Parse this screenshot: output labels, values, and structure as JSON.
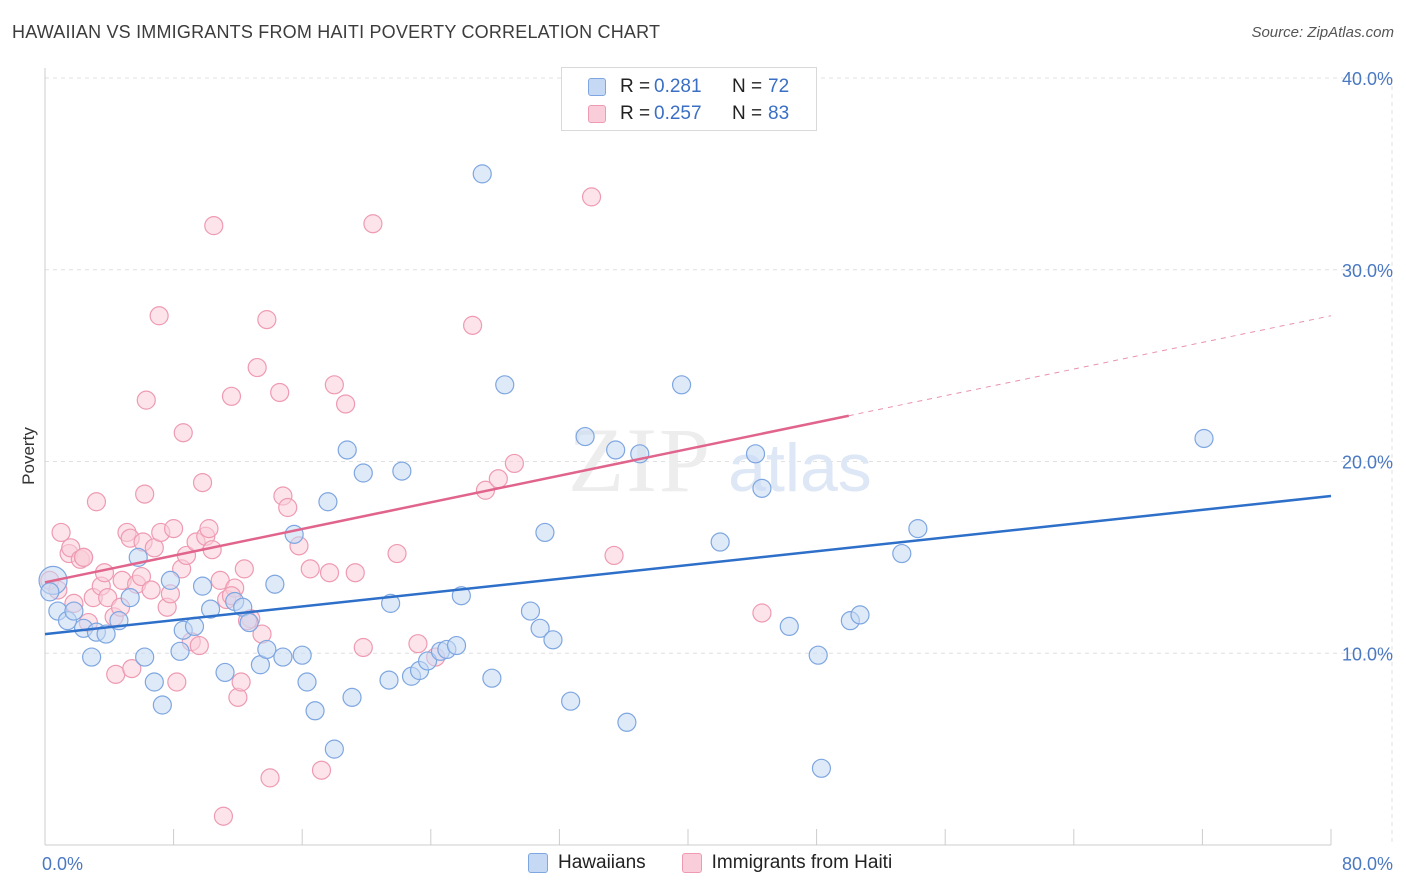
{
  "title": "HAWAIIAN VS IMMIGRANTS FROM HAITI POVERTY CORRELATION CHART",
  "source": "Source: ZipAtlas.com",
  "watermark": {
    "zip": "ZIP",
    "atlas": "atlas"
  },
  "legend": {
    "series1": {
      "r_label": "R =",
      "r_value": "0.281",
      "n_label": "N =",
      "n_value": "72"
    },
    "series2": {
      "r_label": "R =",
      "r_value": "0.257",
      "n_label": "N =",
      "n_value": "83"
    }
  },
  "colors": {
    "blue_fill": "#c5d9f4",
    "blue_stroke": "#7ea6e0",
    "blue_line": "#2d6fc9",
    "pink_fill": "#f9cdd9",
    "pink_stroke": "#ee9ab2",
    "pink_line": "#e0648c",
    "grid": "#e0e0e0",
    "axis_text": "#4a78c2"
  },
  "chart_data": {
    "type": "scatter",
    "title": "HAWAIIAN VS IMMIGRANTS FROM HAITI POVERTY CORRELATION CHART",
    "xlabel": "",
    "ylabel": "Poverty",
    "xlim": [
      0,
      80
    ],
    "ylim": [
      0,
      40
    ],
    "x_tick_labels": [
      "0.0%",
      "80.0%"
    ],
    "y_ticks": [
      10,
      20,
      30,
      40
    ],
    "y_tick_labels": [
      "10.0%",
      "20.0%",
      "30.0%",
      "40.0%"
    ],
    "legend_position": "top-center",
    "series": [
      {
        "name": "Hawaiians",
        "color": "#7ea6e0",
        "trend": {
          "x": [
            0,
            80
          ],
          "y": [
            11.0,
            18.2
          ],
          "dashed_from": null
        },
        "points": [
          [
            0.5,
            13.8
          ],
          [
            0.8,
            12.2
          ],
          [
            1.4,
            11.7
          ],
          [
            1.8,
            12.2
          ],
          [
            2.4,
            11.3
          ],
          [
            2.9,
            9.8
          ],
          [
            3.2,
            11.1
          ],
          [
            3.8,
            11.0
          ],
          [
            4.6,
            11.7
          ],
          [
            5.3,
            12.9
          ],
          [
            5.8,
            15.0
          ],
          [
            6.2,
            9.8
          ],
          [
            6.8,
            8.5
          ],
          [
            7.3,
            7.3
          ],
          [
            7.8,
            13.8
          ],
          [
            8.4,
            10.1
          ],
          [
            8.6,
            11.2
          ],
          [
            9.3,
            11.4
          ],
          [
            9.8,
            13.5
          ],
          [
            10.3,
            12.3
          ],
          [
            11.2,
            9.0
          ],
          [
            11.8,
            12.7
          ],
          [
            12.3,
            12.4
          ],
          [
            12.7,
            11.6
          ],
          [
            13.4,
            9.4
          ],
          [
            13.8,
            10.2
          ],
          [
            14.3,
            13.6
          ],
          [
            14.8,
            9.8
          ],
          [
            15.5,
            16.2
          ],
          [
            16.0,
            9.9
          ],
          [
            16.3,
            8.5
          ],
          [
            16.8,
            7.0
          ],
          [
            17.6,
            17.9
          ],
          [
            18.0,
            5.0
          ],
          [
            18.8,
            20.6
          ],
          [
            19.1,
            7.7
          ],
          [
            19.8,
            19.4
          ],
          [
            21.4,
            8.6
          ],
          [
            21.5,
            12.6
          ],
          [
            22.2,
            19.5
          ],
          [
            22.8,
            8.8
          ],
          [
            23.3,
            9.1
          ],
          [
            23.8,
            9.6
          ],
          [
            24.6,
            10.1
          ],
          [
            25.0,
            10.2
          ],
          [
            25.6,
            10.4
          ],
          [
            25.9,
            13.0
          ],
          [
            27.2,
            35.0
          ],
          [
            27.8,
            8.7
          ],
          [
            28.6,
            24.0
          ],
          [
            30.2,
            12.2
          ],
          [
            30.8,
            11.3
          ],
          [
            31.1,
            16.3
          ],
          [
            31.6,
            10.7
          ],
          [
            32.7,
            7.5
          ],
          [
            33.6,
            21.3
          ],
          [
            35.5,
            20.6
          ],
          [
            36.2,
            6.4
          ],
          [
            37.0,
            20.4
          ],
          [
            39.6,
            24.0
          ],
          [
            42.0,
            15.8
          ],
          [
            44.2,
            20.4
          ],
          [
            44.6,
            18.6
          ],
          [
            46.3,
            11.4
          ],
          [
            48.1,
            9.9
          ],
          [
            48.3,
            4.0
          ],
          [
            50.1,
            11.7
          ],
          [
            50.7,
            12.0
          ],
          [
            53.3,
            15.2
          ],
          [
            54.3,
            16.5
          ],
          [
            72.1,
            21.2
          ],
          [
            0.3,
            13.2
          ]
        ]
      },
      {
        "name": "Immigrants from Haiti",
        "color": "#ee9ab2",
        "trend": {
          "x": [
            0,
            80
          ],
          "y": [
            13.7,
            27.6
          ],
          "dashed_from": 50
        },
        "points": [
          [
            0.3,
            13.8
          ],
          [
            0.8,
            13.3
          ],
          [
            1.0,
            16.3
          ],
          [
            1.5,
            15.2
          ],
          [
            1.6,
            15.5
          ],
          [
            1.8,
            12.6
          ],
          [
            2.2,
            14.9
          ],
          [
            2.4,
            15.0
          ],
          [
            2.7,
            11.6
          ],
          [
            3.0,
            12.9
          ],
          [
            3.2,
            17.9
          ],
          [
            3.5,
            13.5
          ],
          [
            3.7,
            14.2
          ],
          [
            3.9,
            12.9
          ],
          [
            4.3,
            11.9
          ],
          [
            4.4,
            8.9
          ],
          [
            4.7,
            12.4
          ],
          [
            4.8,
            13.8
          ],
          [
            5.1,
            16.3
          ],
          [
            5.3,
            16.0
          ],
          [
            5.4,
            9.2
          ],
          [
            5.7,
            13.6
          ],
          [
            6.0,
            14.0
          ],
          [
            6.1,
            15.8
          ],
          [
            6.2,
            18.3
          ],
          [
            6.3,
            23.2
          ],
          [
            6.6,
            13.3
          ],
          [
            6.8,
            15.5
          ],
          [
            7.1,
            27.6
          ],
          [
            7.2,
            16.3
          ],
          [
            7.6,
            12.4
          ],
          [
            7.8,
            13.1
          ],
          [
            8.0,
            16.5
          ],
          [
            8.2,
            8.5
          ],
          [
            8.5,
            14.4
          ],
          [
            8.6,
            21.5
          ],
          [
            8.8,
            15.1
          ],
          [
            9.1,
            10.6
          ],
          [
            9.4,
            15.8
          ],
          [
            9.6,
            10.4
          ],
          [
            9.8,
            18.9
          ],
          [
            10.0,
            16.1
          ],
          [
            10.2,
            16.5
          ],
          [
            10.4,
            15.4
          ],
          [
            10.5,
            32.3
          ],
          [
            10.9,
            13.8
          ],
          [
            11.1,
            1.5
          ],
          [
            11.3,
            12.8
          ],
          [
            11.6,
            23.4
          ],
          [
            11.8,
            13.4
          ],
          [
            12.0,
            7.7
          ],
          [
            12.2,
            8.5
          ],
          [
            12.4,
            14.4
          ],
          [
            12.8,
            11.8
          ],
          [
            13.2,
            24.9
          ],
          [
            13.5,
            11.0
          ],
          [
            13.8,
            27.4
          ],
          [
            14.0,
            3.5
          ],
          [
            14.6,
            23.6
          ],
          [
            14.8,
            18.2
          ],
          [
            15.1,
            17.6
          ],
          [
            15.8,
            15.6
          ],
          [
            16.5,
            14.4
          ],
          [
            17.2,
            3.9
          ],
          [
            17.7,
            14.2
          ],
          [
            18.0,
            24.0
          ],
          [
            18.7,
            23.0
          ],
          [
            19.3,
            14.2
          ],
          [
            19.8,
            10.3
          ],
          [
            20.4,
            32.4
          ],
          [
            21.9,
            15.2
          ],
          [
            23.2,
            10.5
          ],
          [
            24.3,
            9.8
          ],
          [
            26.6,
            27.1
          ],
          [
            27.4,
            18.5
          ],
          [
            28.2,
            19.1
          ],
          [
            29.2,
            19.9
          ],
          [
            34.0,
            33.8
          ],
          [
            35.4,
            15.1
          ],
          [
            44.6,
            12.1
          ],
          [
            11.6,
            13.0
          ],
          [
            12.6,
            11.7
          ],
          [
            2.4,
            15.0
          ]
        ]
      }
    ]
  },
  "bottom_legend": {
    "series1": "Hawaiians",
    "series2": "Immigrants from Haiti"
  }
}
